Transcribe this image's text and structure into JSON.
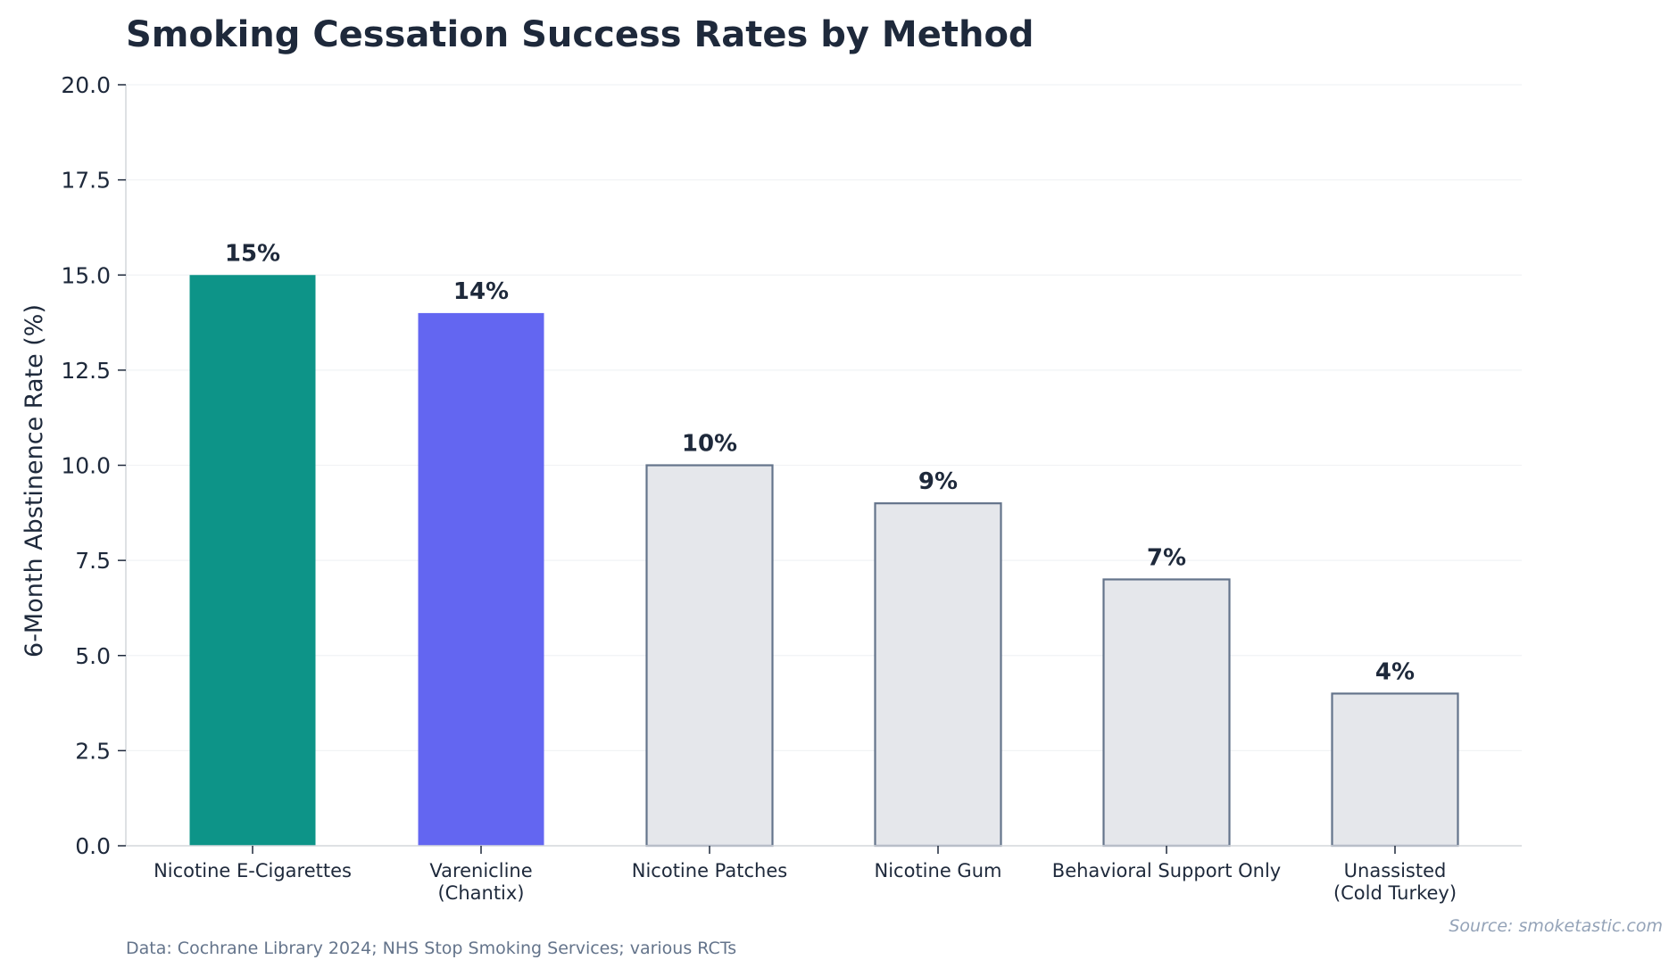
{
  "chart_data": {
    "type": "bar",
    "title": "Smoking Cessation Success Rates by Method",
    "ylabel": "6-Month Abstinence Rate (%)",
    "xlabel": "",
    "ylim": [
      0,
      20
    ],
    "yticks": [
      "0.0",
      "2.5",
      "5.0",
      "7.5",
      "10.0",
      "12.5",
      "15.0",
      "17.5",
      "20.0"
    ],
    "grid": true,
    "categories": [
      [
        "Nicotine E-Cigarettes"
      ],
      [
        "Varenicline",
        "(Chantix)"
      ],
      [
        "Nicotine Patches"
      ],
      [
        "Nicotine Gum"
      ],
      [
        "Behavioral Support Only"
      ],
      [
        "Unassisted",
        "(Cold Turkey)"
      ]
    ],
    "values": [
      15,
      14,
      10,
      9,
      7,
      4
    ],
    "value_labels": [
      "15%",
      "14%",
      "10%",
      "9%",
      "7%",
      "4%"
    ],
    "bar_fill_colors": [
      "#0d9488",
      "#6366f1",
      "#e5e7eb",
      "#e5e7eb",
      "#e5e7eb",
      "#e5e7eb"
    ],
    "bar_edge_colors": [
      "#0d9488",
      "#6366f1",
      "#64748b",
      "#64748b",
      "#64748b",
      "#64748b"
    ]
  },
  "footnote": "Data: Cochrane Library 2024; NHS Stop Smoking Services; various RCTs",
  "source": "Source: smoketastic.com"
}
